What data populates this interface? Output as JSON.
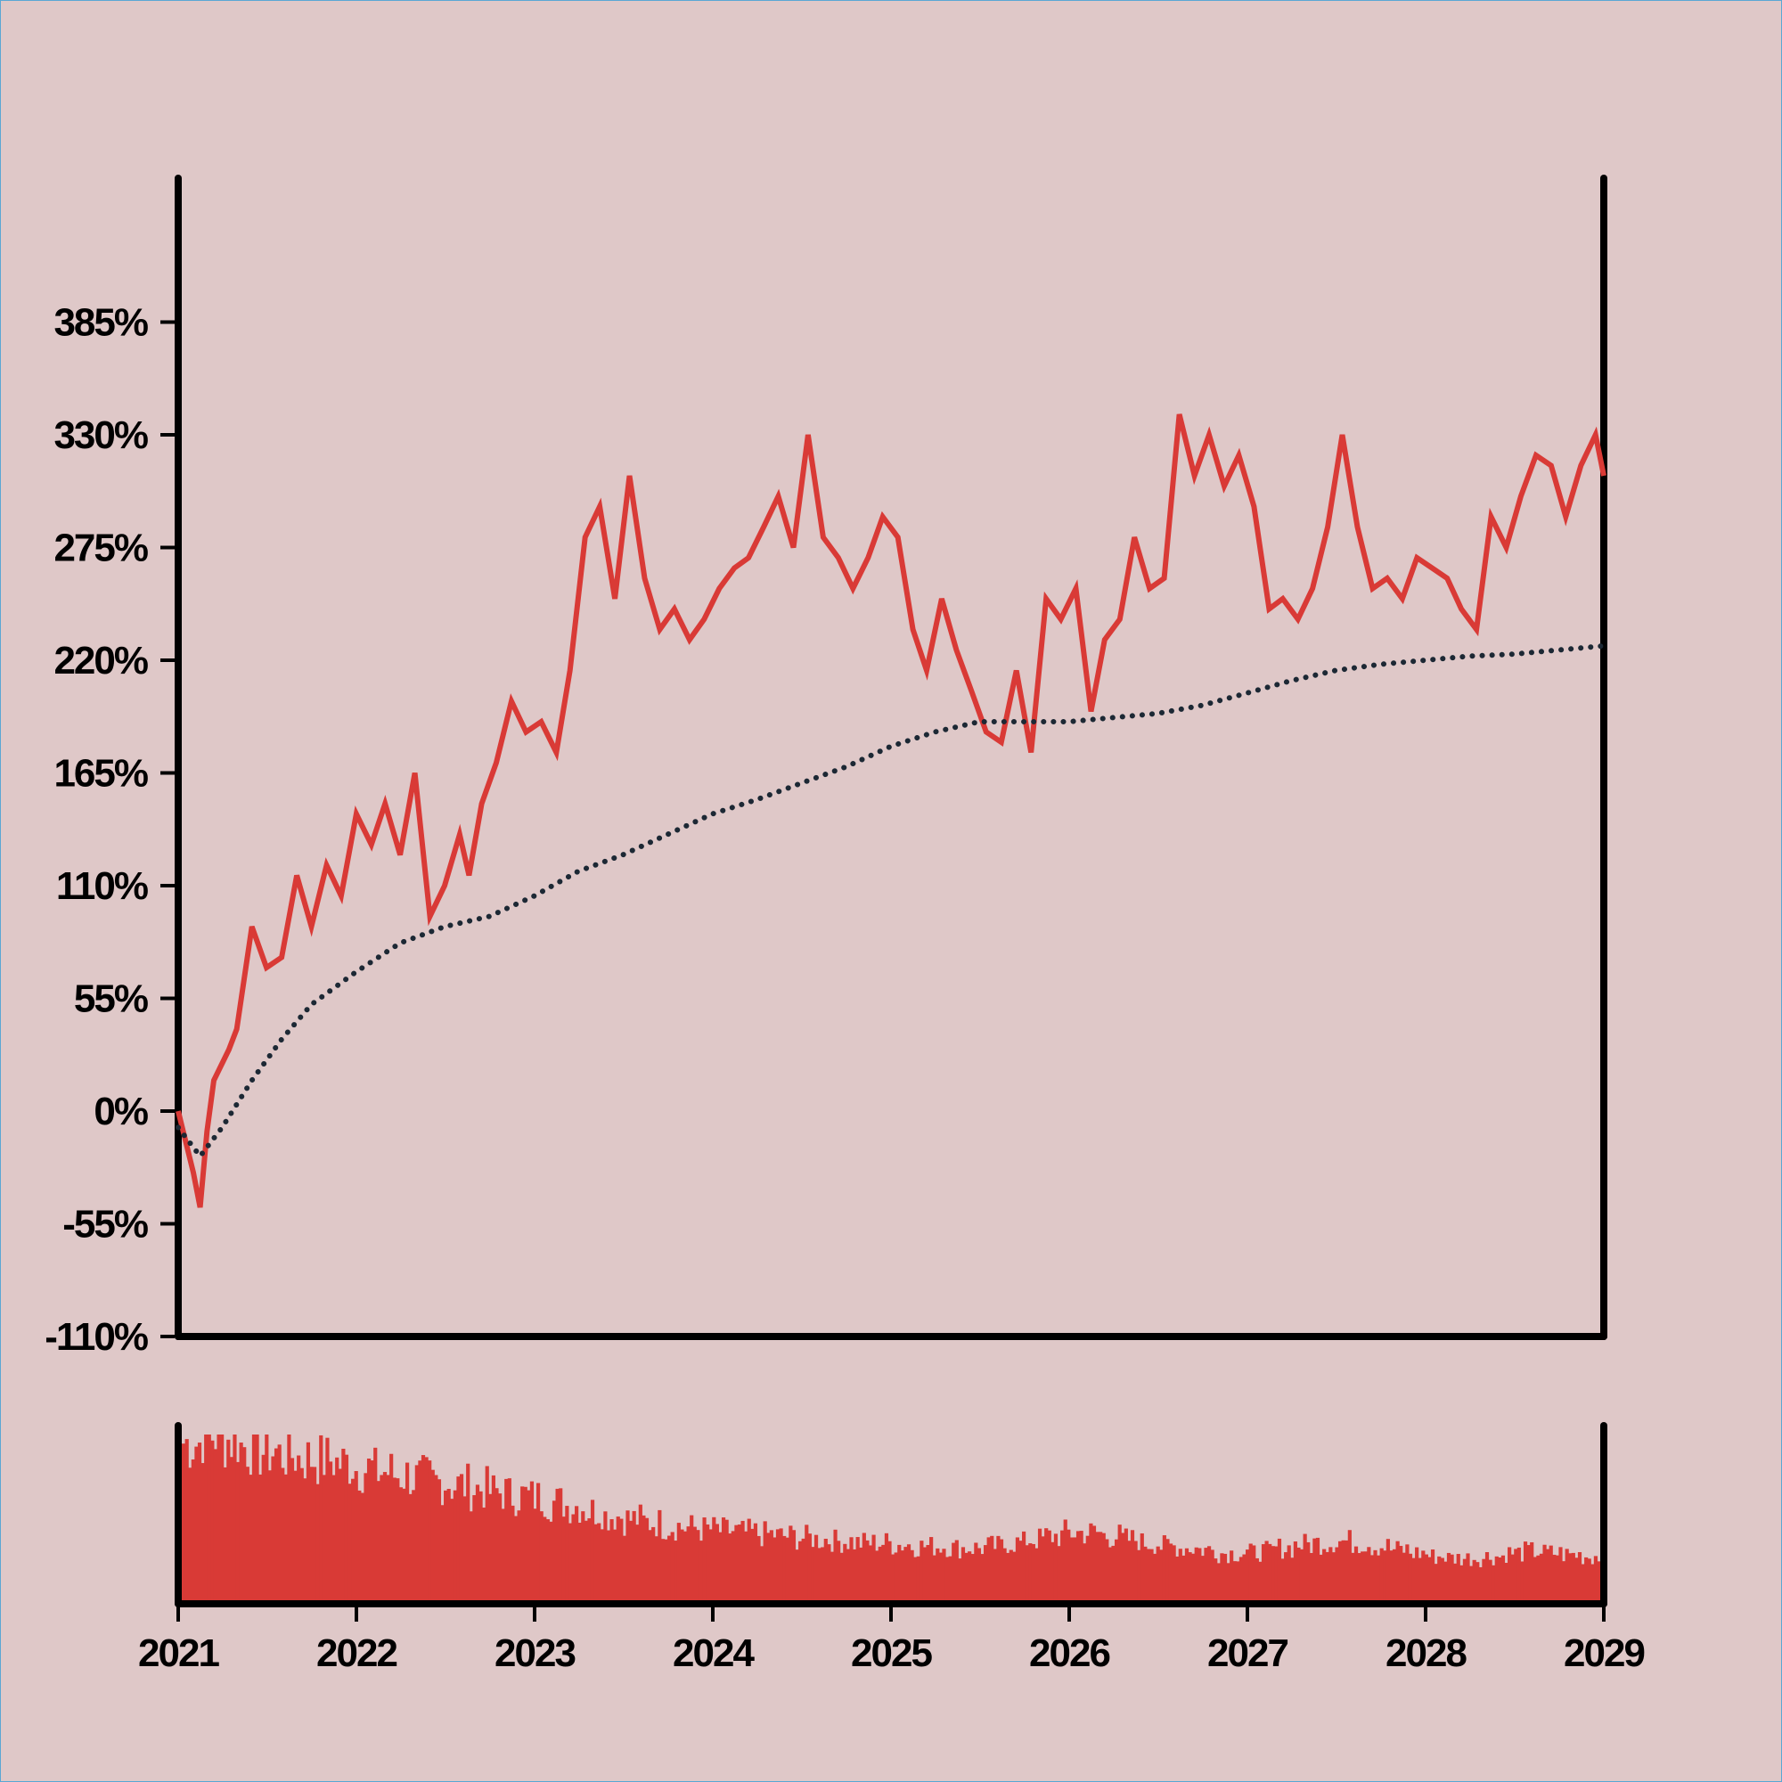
{
  "colors": {
    "background": "#dfc8c8",
    "line": "#d93a36",
    "trend": "#1c2834",
    "axis": "#000000",
    "volume": "#d93a36"
  },
  "chart_data": {
    "type": "line",
    "grid": false,
    "legend": "none",
    "x_axis": {
      "type": "date",
      "range": [
        "2021-01-01",
        "2029-01-01"
      ],
      "tick_labels": [
        "2021",
        "2022",
        "2023",
        "2024",
        "2025",
        "2026",
        "2027",
        "2028",
        "2029"
      ]
    },
    "y_axis": {
      "range": [
        -110,
        440
      ],
      "unit": "%",
      "tick_values": [
        -110,
        -55,
        0,
        55,
        110,
        165,
        220,
        275,
        330,
        385
      ],
      "tick_labels": [
        "-110%",
        "-55%",
        "0%",
        "55%",
        "110%",
        "165%",
        "220%",
        "275%",
        "330%",
        "385%"
      ]
    },
    "series": [
      {
        "style": "solid-line",
        "x": [
          "2021-01-01",
          "2021-02-01",
          "2021-02-15",
          "2021-03-01",
          "2021-03-15",
          "2021-04-15",
          "2021-05-01",
          "2021-06-01",
          "2021-07-01",
          "2021-08-01",
          "2021-09-01",
          "2021-10-01",
          "2021-11-01",
          "2021-12-01",
          "2022-01-01",
          "2022-02-01",
          "2022-03-01",
          "2022-04-01",
          "2022-05-01",
          "2022-06-01",
          "2022-07-01",
          "2022-08-01",
          "2022-08-20",
          "2022-09-15",
          "2022-10-15",
          "2022-11-15",
          "2022-12-15",
          "2023-01-15",
          "2023-02-15",
          "2023-03-15",
          "2023-04-15",
          "2023-05-15",
          "2023-06-15",
          "2023-07-15",
          "2023-08-15",
          "2023-09-15",
          "2023-10-15",
          "2023-11-15",
          "2023-12-15",
          "2024-01-15",
          "2024-02-15",
          "2024-03-15",
          "2024-04-15",
          "2024-05-15",
          "2024-06-15",
          "2024-07-15",
          "2024-08-15",
          "2024-09-15",
          "2024-10-15",
          "2024-11-15",
          "2024-12-15",
          "2025-01-15",
          "2025-02-15",
          "2025-03-15",
          "2025-04-15",
          "2025-05-15",
          "2025-06-15",
          "2025-07-15",
          "2025-08-15",
          "2025-09-15",
          "2025-10-15",
          "2025-11-15",
          "2025-12-15",
          "2026-01-15",
          "2026-02-15",
          "2026-03-15",
          "2026-04-15",
          "2026-05-15",
          "2026-06-15",
          "2026-07-15",
          "2026-08-15",
          "2026-09-15",
          "2026-10-15",
          "2026-11-15",
          "2026-12-15",
          "2027-01-15",
          "2027-02-15",
          "2027-03-15",
          "2027-04-15",
          "2027-05-15",
          "2027-06-15",
          "2027-07-15",
          "2027-08-15",
          "2027-09-15",
          "2027-10-15",
          "2027-11-15",
          "2027-12-15",
          "2028-01-15",
          "2028-02-15",
          "2028-03-15",
          "2028-04-15",
          "2028-05-15",
          "2028-06-15",
          "2028-07-15",
          "2028-08-15",
          "2028-09-15",
          "2028-10-15",
          "2028-11-15",
          "2028-12-15",
          "2029-01-01"
        ],
        "y": [
          0,
          -30,
          -47,
          -10,
          15,
          30,
          40,
          90,
          70,
          75,
          115,
          90,
          120,
          105,
          145,
          130,
          150,
          125,
          165,
          95,
          110,
          135,
          115,
          150,
          170,
          200,
          185,
          190,
          175,
          215,
          280,
          295,
          250,
          310,
          260,
          235,
          245,
          230,
          240,
          255,
          265,
          270,
          285,
          300,
          275,
          330,
          280,
          270,
          255,
          270,
          290,
          280,
          235,
          215,
          250,
          225,
          205,
          185,
          180,
          215,
          175,
          250,
          240,
          255,
          195,
          230,
          240,
          280,
          255,
          260,
          340,
          310,
          330,
          305,
          320,
          295,
          245,
          250,
          240,
          255,
          285,
          330,
          285,
          255,
          260,
          250,
          270,
          265,
          260,
          245,
          235,
          290,
          275,
          300,
          320,
          315,
          290,
          315,
          330,
          310
        ]
      },
      {
        "style": "dotted-line",
        "x": [
          "2021-01-01",
          "2021-02-15",
          "2021-04-01",
          "2021-06-01",
          "2021-08-01",
          "2021-10-01",
          "2022-01-01",
          "2022-04-01",
          "2022-07-01",
          "2022-10-01",
          "2023-01-01",
          "2023-04-01",
          "2023-07-01",
          "2023-10-01",
          "2024-01-01",
          "2024-04-01",
          "2024-07-01",
          "2024-10-01",
          "2025-01-01",
          "2025-04-01",
          "2025-07-01",
          "2025-10-01",
          "2026-01-01",
          "2026-04-01",
          "2026-07-01",
          "2026-10-01",
          "2027-01-01",
          "2027-04-01",
          "2027-07-01",
          "2027-10-01",
          "2028-01-01",
          "2028-04-01",
          "2028-07-01",
          "2028-10-01",
          "2029-01-01"
        ],
        "y": [
          -8,
          -22,
          -8,
          15,
          35,
          52,
          68,
          82,
          90,
          95,
          105,
          117,
          125,
          135,
          145,
          152,
          160,
          168,
          178,
          185,
          190,
          190,
          190,
          192,
          194,
          198,
          204,
          210,
          215,
          218,
          220,
          222,
          223,
          225,
          227
        ]
      }
    ],
    "volume": {
      "type": "bar",
      "x_range": [
        "2021-01-01",
        "2029-01-01"
      ],
      "relative_heights": [
        0.95,
        1.0,
        0.97,
        0.93,
        0.9,
        0.88,
        0.86,
        0.85,
        0.83,
        0.8,
        0.78,
        0.76,
        0.74,
        0.72,
        0.7,
        0.68,
        0.66,
        0.64,
        0.63,
        0.6,
        0.58,
        0.55,
        0.52,
        0.5,
        0.48,
        0.46,
        0.45,
        0.44,
        0.43,
        0.42,
        0.41,
        0.4,
        0.39,
        0.38,
        0.37,
        0.36,
        0.36,
        0.35,
        0.34,
        0.34,
        0.33,
        0.33,
        0.34,
        0.36,
        0.38,
        0.4,
        0.42,
        0.42,
        0.4,
        0.38,
        0.36,
        0.34,
        0.33,
        0.32,
        0.3,
        0.3,
        0.31,
        0.33,
        0.35,
        0.36,
        0.37,
        0.36,
        0.34,
        0.32,
        0.3,
        0.28,
        0.27,
        0.27,
        0.28,
        0.3,
        0.31,
        0.3,
        0.29,
        0.28
      ]
    }
  }
}
